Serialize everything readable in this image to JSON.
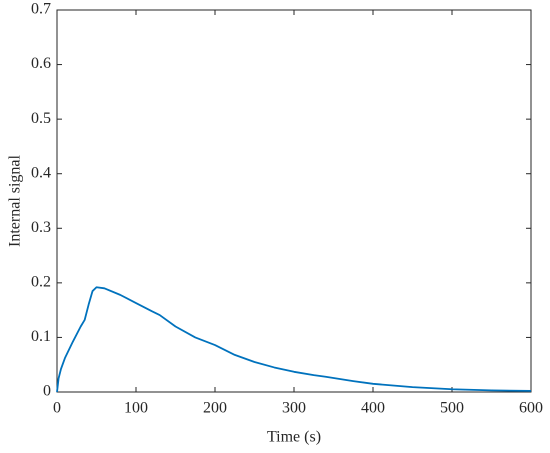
{
  "chart_data": {
    "type": "line",
    "x_label": "Time (s)",
    "y_label": "Internal signal",
    "x": [
      0,
      2,
      5,
      10,
      20,
      30,
      35,
      40,
      45,
      50,
      60,
      80,
      100,
      120,
      130,
      150,
      175,
      200,
      225,
      250,
      275,
      300,
      325,
      340,
      375,
      400,
      450,
      500,
      550,
      600
    ],
    "series": [
      {
        "color": "#0072bd",
        "values": [
          0,
          0.025,
          0.042,
          0.062,
          0.092,
          0.12,
          0.132,
          0.16,
          0.185,
          0.192,
          0.19,
          0.178,
          0.163,
          0.148,
          0.141,
          0.12,
          0.1,
          0.086,
          0.068,
          0.055,
          0.045,
          0.037,
          0.031,
          0.028,
          0.02,
          0.015,
          0.009,
          0.005,
          0.003,
          0.002
        ]
      }
    ],
    "xlim": [
      0,
      600
    ],
    "xticks": [
      0,
      100,
      200,
      300,
      400,
      500,
      600
    ],
    "ylim": [
      0,
      0.7
    ],
    "yticks": [
      0,
      0.1,
      0.2,
      0.3,
      0.4,
      0.5,
      0.6,
      0.7
    ]
  }
}
